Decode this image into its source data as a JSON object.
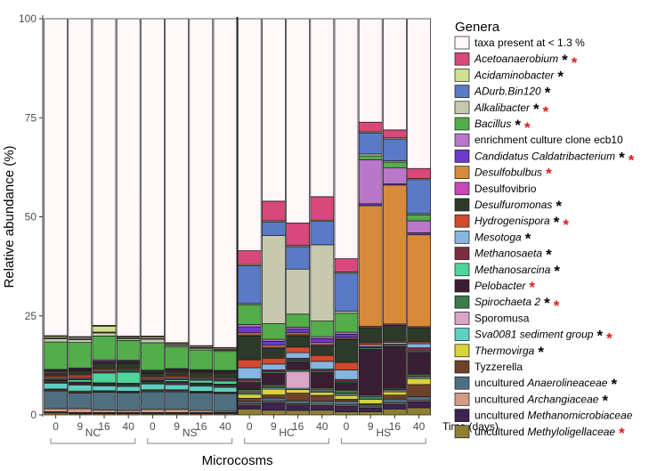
{
  "chart_data": {
    "type": "bar",
    "stacked": true,
    "ylabel": "Relative abundance (%)",
    "xlabel": "Microcosms",
    "ylim": [
      0,
      100
    ],
    "yticks": [
      0,
      25,
      50,
      75,
      100
    ],
    "time_label": "Time (days)",
    "groups": [
      "NC",
      "NS",
      "HC",
      "HS"
    ],
    "days": [
      "0",
      "9",
      "16",
      "40"
    ],
    "legend_title": "Genera",
    "genera": [
      {
        "key": "g01",
        "prefix": "",
        "italic": "Methyloligellaceae",
        "suffix": "",
        "label": "uncultured Methyloligellaceae",
        "marks": [
          "red"
        ],
        "color": "#8e7f35"
      },
      {
        "key": "g02",
        "prefix": "",
        "italic": "Methanomicrobiaceae",
        "suffix": "",
        "label": "uncultured Methanomicrobiaceae",
        "marks": [],
        "color": "#3d234f"
      },
      {
        "key": "g03",
        "prefix": "",
        "italic": "Archangiaceae",
        "suffix": "",
        "label": "uncultured Archangiaceae",
        "marks": [
          "black"
        ],
        "color": "#d39a85"
      },
      {
        "key": "g04",
        "prefix": "",
        "italic": "Anaerolineaceae",
        "suffix": "",
        "label": "uncultured Anaerolineaceae",
        "marks": [
          "black"
        ],
        "color": "#4f6f80"
      },
      {
        "key": "g05",
        "prefix": "",
        "italic": "",
        "suffix": "",
        "label": "Tyzzerella",
        "marks": [],
        "color": "#70412a"
      },
      {
        "key": "g06",
        "prefix": "",
        "italic": "Thermovirga",
        "suffix": "",
        "label": "Thermovirga",
        "marks": [
          "black"
        ],
        "color": "#d7d43a"
      },
      {
        "key": "g07",
        "prefix": "",
        "italic": "Sva0081 sediment group",
        "suffix": "",
        "label": "Sva0081 sediment group",
        "marks": [
          "black",
          "red"
        ],
        "color": "#5fcfc4"
      },
      {
        "key": "g08",
        "prefix": "",
        "italic": "",
        "suffix": "",
        "label": "Sporomusa",
        "marks": [],
        "color": "#d9a6c8"
      },
      {
        "key": "g09",
        "prefix": "",
        "italic": "Spirochaeta 2",
        "suffix": "",
        "label": "Spirochaeta 2",
        "marks": [
          "black",
          "red"
        ],
        "color": "#3c7a4a"
      },
      {
        "key": "g10",
        "prefix": "",
        "italic": "Pelobacter",
        "suffix": "",
        "label": "Pelobacter",
        "marks": [
          "red"
        ],
        "color": "#3a1f33"
      },
      {
        "key": "g11",
        "prefix": "",
        "italic": "Methanosarcina",
        "suffix": "",
        "label": "Methanosarcina",
        "marks": [
          "black"
        ],
        "color": "#4fd59b"
      },
      {
        "key": "g12",
        "prefix": "",
        "italic": "Methanosaeta",
        "suffix": "",
        "label": "Methanosaeta",
        "marks": [
          "black"
        ],
        "color": "#7c2d42"
      },
      {
        "key": "g13",
        "prefix": "",
        "italic": "Mesotoga",
        "suffix": "",
        "label": "Mesotoga",
        "marks": [
          "black"
        ],
        "color": "#85b5e0"
      },
      {
        "key": "g14",
        "prefix": "",
        "italic": "Hydrogenispora",
        "suffix": "",
        "label": "Hydrogenispora",
        "marks": [
          "black",
          "red"
        ],
        "color": "#d24a2e"
      },
      {
        "key": "g15",
        "prefix": "",
        "italic": "Desulfuromonas",
        "suffix": "",
        "label": "Desulfuromonas",
        "marks": [
          "black"
        ],
        "color": "#2d3a2a"
      },
      {
        "key": "g16",
        "prefix": "",
        "italic": "",
        "suffix": "",
        "label": "Desulfovibrio",
        "marks": [],
        "color": "#c946b6"
      },
      {
        "key": "g17",
        "prefix": "",
        "italic": "Desulfobulbus",
        "suffix": "",
        "label": "Desulfobulbus",
        "marks": [
          "red"
        ],
        "color": "#d68a3a"
      },
      {
        "key": "g18",
        "prefix": "",
        "italic": "Candidatus Caldatribacterium",
        "suffix": "",
        "label": "Candidatus Caldatribacterium",
        "marks": [
          "black",
          "red"
        ],
        "color": "#6b3ac9"
      },
      {
        "key": "g19",
        "prefix": "",
        "italic": "",
        "suffix": "",
        "label": "enrichment culture clone ecb10",
        "marks": [],
        "color": "#b977c9"
      },
      {
        "key": "g20",
        "prefix": "",
        "italic": "Bacillus",
        "suffix": "",
        "label": "Bacillus",
        "marks": [
          "black",
          "red"
        ],
        "color": "#52ad4a"
      },
      {
        "key": "g21",
        "prefix": "",
        "italic": "Alkalibacter",
        "suffix": "",
        "label": "Alkalibacter",
        "marks": [
          "black",
          "red"
        ],
        "color": "#c7c9ae"
      },
      {
        "key": "g22",
        "prefix": "",
        "italic": "ADurb.Bin120",
        "suffix": "",
        "label": "ADurb.Bin120",
        "marks": [
          "black"
        ],
        "color": "#5a79c6"
      },
      {
        "key": "g23",
        "prefix": "",
        "italic": "Acidaminobacter",
        "suffix": "",
        "label": "Acidaminobacter",
        "marks": [
          "black"
        ],
        "color": "#cfe08e"
      },
      {
        "key": "g24",
        "prefix": "",
        "italic": "Acetoanaerobium",
        "suffix": "",
        "label": "Acetoanaerobium",
        "marks": [
          "black",
          "red"
        ],
        "color": "#d8487a"
      },
      {
        "key": "g25",
        "prefix": "",
        "italic": "",
        "suffix": "",
        "label": "taxa present at < 1.3 %",
        "marks": [],
        "color": "#fff7f8"
      }
    ],
    "samples": [
      {
        "group": "NC",
        "day": "0",
        "values": {
          "g01": 0.5,
          "g02": 0.3,
          "g03": 0.8,
          "g04": 4.5,
          "g05": 0.3,
          "g06": 0.2,
          "g07": 1.5,
          "g08": 0.2,
          "g09": 0.3,
          "g10": 0.3,
          "g11": 0,
          "g12": 0.2,
          "g13": 0.3,
          "g14": 0.5,
          "g15": 0.8,
          "g16": 0.3,
          "g17": 0.2,
          "g18": 0.2,
          "g19": 0.2,
          "g20": 7.0,
          "g21": 0.8,
          "g22": 0.2,
          "g23": 0.4,
          "g24": 0.2,
          "g25": 80.8
        }
      },
      {
        "group": "NC",
        "day": "9",
        "values": {
          "g01": 0.3,
          "g02": 0.3,
          "g03": 1.0,
          "g04": 4.0,
          "g05": 0.3,
          "g06": 0.2,
          "g07": 1.5,
          "g08": 0.2,
          "g09": 0.3,
          "g10": 0.3,
          "g11": 0.6,
          "g12": 0.3,
          "g13": 0.3,
          "g14": 0.6,
          "g15": 1.0,
          "g16": 0.2,
          "g17": 0.2,
          "g18": 0.2,
          "g19": 0.2,
          "g20": 6.5,
          "g21": 0.7,
          "g22": 0.2,
          "g23": 0.4,
          "g24": 0.2,
          "g25": 81.2
        }
      },
      {
        "group": "NC",
        "day": "16",
        "values": {
          "g01": 0.3,
          "g02": 0.3,
          "g03": 0.6,
          "g04": 4.5,
          "g05": 0.2,
          "g06": 0.2,
          "g07": 1.2,
          "g08": 0.2,
          "g09": 0.3,
          "g10": 0.3,
          "g11": 2.5,
          "g12": 0.4,
          "g13": 0.3,
          "g14": 0.4,
          "g15": 1.2,
          "g16": 0.2,
          "g17": 0.2,
          "g18": 0.3,
          "g19": 0.3,
          "g20": 6.0,
          "g21": 0.8,
          "g22": 0.2,
          "g23": 1.5,
          "g24": 0.2,
          "g25": 77.4
        }
      },
      {
        "group": "NC",
        "day": "40",
        "values": {
          "g01": 0.3,
          "g02": 0.3,
          "g03": 0.5,
          "g04": 4.5,
          "g05": 0.2,
          "g06": 0.2,
          "g07": 1.2,
          "g08": 0.2,
          "g09": 0.3,
          "g10": 0.3,
          "g11": 2.8,
          "g12": 0.3,
          "g13": 0.3,
          "g14": 0.3,
          "g15": 1.3,
          "g16": 0.2,
          "g17": 0.2,
          "g18": 0.2,
          "g19": 0.2,
          "g20": 5.0,
          "g21": 0.4,
          "g22": 0.2,
          "g23": 0.3,
          "g24": 0.2,
          "g25": 80.2
        }
      },
      {
        "group": "NS",
        "day": "0",
        "values": {
          "g01": 0.3,
          "g02": 0.3,
          "g03": 0.8,
          "g04": 4.5,
          "g05": 0.3,
          "g06": 0.2,
          "g07": 1.5,
          "g08": 0.2,
          "g09": 0.3,
          "g10": 0.3,
          "g11": 0,
          "g12": 0.2,
          "g13": 0.3,
          "g14": 0.5,
          "g15": 0.9,
          "g16": 0.2,
          "g17": 0.2,
          "g18": 0.2,
          "g19": 0.2,
          "g20": 7.0,
          "g21": 0.9,
          "g22": 0.2,
          "g23": 0.4,
          "g24": 0.2,
          "g25": 80.9
        }
      },
      {
        "group": "NS",
        "day": "9",
        "values": {
          "g01": 0.3,
          "g02": 0.3,
          "g03": 0.8,
          "g04": 4.5,
          "g05": 0.3,
          "g06": 0.2,
          "g07": 1.3,
          "g08": 0.2,
          "g09": 0.3,
          "g10": 0.3,
          "g11": 0.5,
          "g12": 0.3,
          "g13": 0.3,
          "g14": 0.4,
          "g15": 1.0,
          "g16": 0.2,
          "g17": 0.2,
          "g18": 0.2,
          "g19": 0.2,
          "g20": 5.5,
          "g21": 0.4,
          "g22": 0.2,
          "g23": 0.3,
          "g24": 0.2,
          "g25": 82.5
        }
      },
      {
        "group": "NS",
        "day": "16",
        "values": {
          "g01": 0.3,
          "g02": 0.3,
          "g03": 0.5,
          "g04": 4.5,
          "g05": 0.2,
          "g06": 0.2,
          "g07": 1.3,
          "g08": 0.2,
          "g09": 0.3,
          "g10": 0.3,
          "g11": 0.7,
          "g12": 0.3,
          "g13": 0.3,
          "g14": 0.3,
          "g15": 1.0,
          "g16": 0.2,
          "g17": 0.2,
          "g18": 0.2,
          "g19": 0.2,
          "g20": 5.0,
          "g21": 0.4,
          "g22": 0.2,
          "g23": 0.3,
          "g24": 0.2,
          "g25": 83.0
        }
      },
      {
        "group": "NS",
        "day": "40",
        "values": {
          "g01": 0.3,
          "g02": 0.3,
          "g03": 0.3,
          "g04": 4.5,
          "g05": 0.2,
          "g06": 0.2,
          "g07": 1.2,
          "g08": 0.2,
          "g09": 0.3,
          "g10": 0.3,
          "g11": 0.8,
          "g12": 0.3,
          "g13": 0.3,
          "g14": 0.3,
          "g15": 1.0,
          "g16": 0.2,
          "g17": 0.2,
          "g18": 0.2,
          "g19": 0.2,
          "g20": 4.8,
          "g21": 0.3,
          "g22": 0.2,
          "g23": 0.3,
          "g24": 0.2,
          "g25": 83.4
        }
      },
      {
        "group": "HC",
        "day": "0",
        "values": {
          "g01": 1.5,
          "g02": 1.0,
          "g03": 0.3,
          "g04": 0.6,
          "g05": 0.8,
          "g06": 1.0,
          "g07": 0.3,
          "g08": 0.3,
          "g09": 0.6,
          "g10": 1.8,
          "g11": 0.3,
          "g12": 0.6,
          "g13": 2.8,
          "g14": 2.0,
          "g15": 6.0,
          "g16": 0.3,
          "g17": 0.5,
          "g18": 1.5,
          "g19": 0.6,
          "g20": 5.0,
          "g21": 0.3,
          "g22": 9.5,
          "g23": 0.3,
          "g24": 3.5,
          "g25": 58.5
        }
      },
      {
        "group": "HC",
        "day": "9",
        "values": {
          "g01": 1.2,
          "g02": 2.0,
          "g03": 0.3,
          "g04": 0.8,
          "g05": 0.8,
          "g06": 1.5,
          "g07": 0.3,
          "g08": 0.3,
          "g09": 0.5,
          "g10": 3.0,
          "g11": 0.3,
          "g12": 0.5,
          "g13": 1.5,
          "g14": 1.5,
          "g15": 2.5,
          "g16": 0.3,
          "g17": 0.5,
          "g18": 1.0,
          "g19": 0.5,
          "g20": 4.0,
          "g21": 22.5,
          "g22": 3.5,
          "g23": 0.3,
          "g24": 5.0,
          "g25": 46.6
        }
      },
      {
        "group": "HC",
        "day": "16",
        "values": {
          "g01": 1.2,
          "g02": 1.5,
          "g03": 0.3,
          "g04": 0.8,
          "g05": 2.0,
          "g06": 1.0,
          "g07": 0.3,
          "g08": 4.5,
          "g09": 0.5,
          "g10": 2.2,
          "g11": 0.3,
          "g12": 0.5,
          "g13": 1.5,
          "g14": 1.5,
          "g15": 3.0,
          "g16": 0.3,
          "g17": 0.5,
          "g18": 1.0,
          "g19": 0.5,
          "g20": 3.5,
          "g21": 12.0,
          "g22": 6.0,
          "g23": 0.3,
          "g24": 6.0,
          "g25": 54.5
        }
      },
      {
        "group": "HC",
        "day": "40",
        "values": {
          "g01": 1.2,
          "g02": 1.2,
          "g03": 0.3,
          "g04": 0.8,
          "g05": 1.5,
          "g06": 0.8,
          "g07": 0.3,
          "g08": 0.3,
          "g09": 0.5,
          "g10": 4.0,
          "g11": 0.3,
          "g12": 0.5,
          "g13": 2.0,
          "g14": 1.5,
          "g15": 2.5,
          "g16": 0.3,
          "g17": 0.5,
          "g18": 1.0,
          "g19": 0.5,
          "g20": 4.0,
          "g21": 19.5,
          "g22": 6.0,
          "g23": 0.3,
          "g24": 6.0,
          "g25": 45.5
        }
      },
      {
        "group": "HS",
        "day": "0",
        "values": {
          "g01": 0.8,
          "g02": 1.5,
          "g03": 0.3,
          "g04": 1.0,
          "g05": 0.5,
          "g06": 1.0,
          "g07": 0.3,
          "g08": 0.3,
          "g09": 0.8,
          "g10": 2.0,
          "g11": 0.3,
          "g12": 0.5,
          "g13": 2.5,
          "g14": 2.0,
          "g15": 6.0,
          "g16": 0.3,
          "g17": 0.3,
          "g18": 0.8,
          "g19": 0.5,
          "g20": 5.0,
          "g21": 0.5,
          "g22": 10.0,
          "g23": 0.3,
          "g24": 3.5,
          "g25": 63.0
        }
      },
      {
        "group": "HS",
        "day": "9",
        "values": {
          "g01": 0.8,
          "g02": 1.0,
          "g03": 0.3,
          "g04": 0.5,
          "g05": 0.3,
          "g06": 1.2,
          "g07": 0.3,
          "g08": 0.3,
          "g09": 0.5,
          "g10": 12.0,
          "g11": 0.3,
          "g12": 0.3,
          "g13": 0.5,
          "g14": 0.5,
          "g15": 4.0,
          "g16": 0.3,
          "g17": 31.5,
          "g18": 0.5,
          "g19": 11.5,
          "g20": 1.0,
          "g21": 0.5,
          "g22": 5.5,
          "g23": 0.3,
          "g24": 2.5,
          "g25": 27.0
        }
      },
      {
        "group": "HS",
        "day": "16",
        "values": {
          "g01": 1.5,
          "g02": 1.2,
          "g03": 0.3,
          "g04": 1.0,
          "g05": 1.0,
          "g06": 0.8,
          "g07": 0.3,
          "g08": 0.3,
          "g09": 0.3,
          "g10": 10.5,
          "g11": 0.3,
          "g12": 0.3,
          "g13": 0.5,
          "g14": 0.3,
          "g15": 4.0,
          "g16": 0.3,
          "g17": 35.0,
          "g18": 0.3,
          "g19": 4.0,
          "g20": 1.5,
          "g21": 0.3,
          "g22": 5.5,
          "g23": 0.3,
          "g24": 2.0,
          "g25": 28.0
        }
      },
      {
        "group": "HS",
        "day": "40",
        "values": {
          "g01": 1.8,
          "g02": 1.5,
          "g03": 0.3,
          "g04": 1.0,
          "g05": 3.0,
          "g06": 1.5,
          "g07": 0.3,
          "g08": 0.3,
          "g09": 0.5,
          "g10": 5.5,
          "g11": 0.3,
          "g12": 0.8,
          "g13": 1.0,
          "g14": 0.5,
          "g15": 3.5,
          "g16": 0.3,
          "g17": 23.0,
          "g18": 0.5,
          "g19": 3.0,
          "g20": 1.5,
          "g21": 0.3,
          "g22": 8.5,
          "g23": 0.3,
          "g24": 2.5,
          "g25": 37.5
        }
      }
    ]
  }
}
